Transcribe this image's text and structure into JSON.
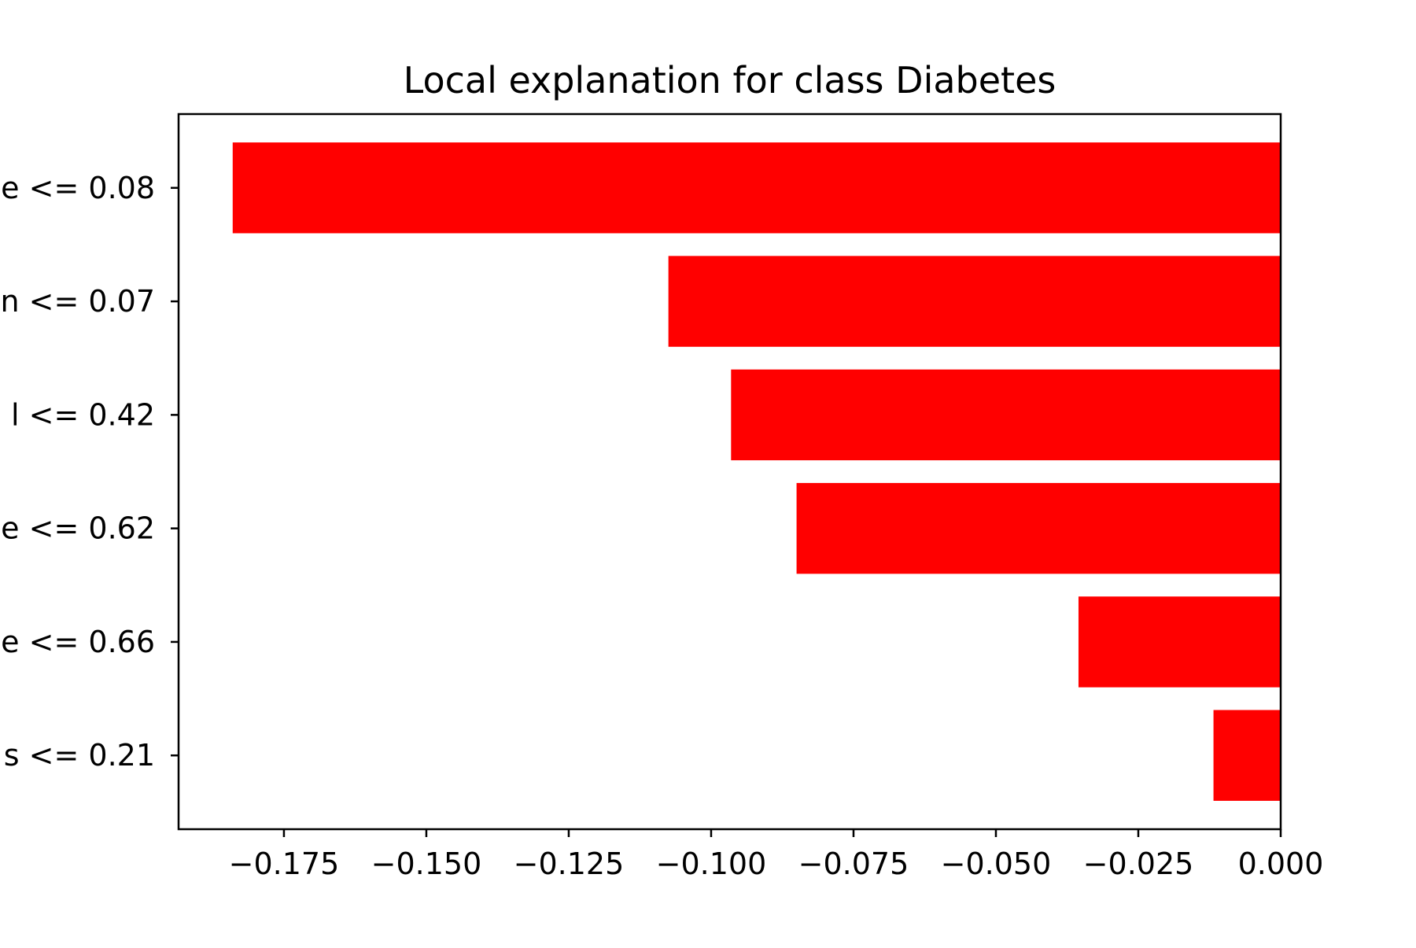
{
  "chart_data": {
    "type": "bar",
    "orientation": "horizontal",
    "title": "Local explanation for class Diabetes",
    "xlabel": "",
    "ylabel": "",
    "categories": [
      "e <= 0.08",
      "n <= 0.07",
      "l <= 0.42",
      "e <= 0.62",
      "e <= 0.66",
      "s <= 0.21"
    ],
    "values": [
      -0.184,
      -0.1075,
      -0.0965,
      -0.085,
      -0.0355,
      -0.0118
    ],
    "xlim": [
      -0.1935,
      0.0
    ],
    "xticks": [
      -0.175,
      -0.15,
      -0.125,
      -0.1,
      -0.075,
      -0.05,
      -0.025,
      0.0
    ],
    "xtick_labels": [
      "−0.175",
      "−0.150",
      "−0.125",
      "−0.100",
      "−0.075",
      "−0.050",
      "−0.025",
      "0.000"
    ],
    "bar_color": "#ff0000",
    "grid": false,
    "legend": "none"
  }
}
